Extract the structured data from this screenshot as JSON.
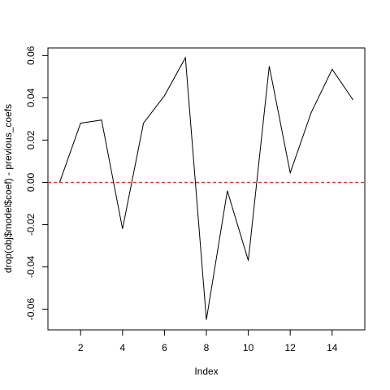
{
  "chart_data": {
    "type": "line",
    "xlabel": "Index",
    "ylabel": "drop(obj$model$coef) - previous_coefs",
    "x": [
      1,
      2,
      3,
      4,
      5,
      6,
      7,
      8,
      9,
      10,
      11,
      12,
      13,
      14,
      15
    ],
    "series": [
      {
        "values": [
          0.0,
          0.028,
          0.0295,
          -0.022,
          0.028,
          0.041,
          0.059,
          -0.065,
          -0.004,
          -0.037,
          0.055,
          0.0045,
          0.033,
          0.0535,
          0.039
        ],
        "color": "#000000"
      }
    ],
    "reference_line": {
      "y": 0.0,
      "color": "#ff0000",
      "style": "dashed"
    },
    "xlim": [
      0.44,
      15.56
    ],
    "ylim": [
      -0.0698,
      0.0636
    ],
    "x_ticks": [
      2,
      4,
      6,
      8,
      10,
      12,
      14
    ],
    "x_tick_labels": [
      "2",
      "4",
      "6",
      "8",
      "10",
      "12",
      "14"
    ],
    "y_ticks": [
      -0.06,
      -0.04,
      -0.02,
      0.0,
      0.02,
      0.04,
      0.06
    ],
    "y_tick_labels": [
      "-0.06",
      "-0.04",
      "-0.02",
      "0.00",
      "0.02",
      "0.04",
      "0.06"
    ],
    "grid": false,
    "legend": "none"
  }
}
